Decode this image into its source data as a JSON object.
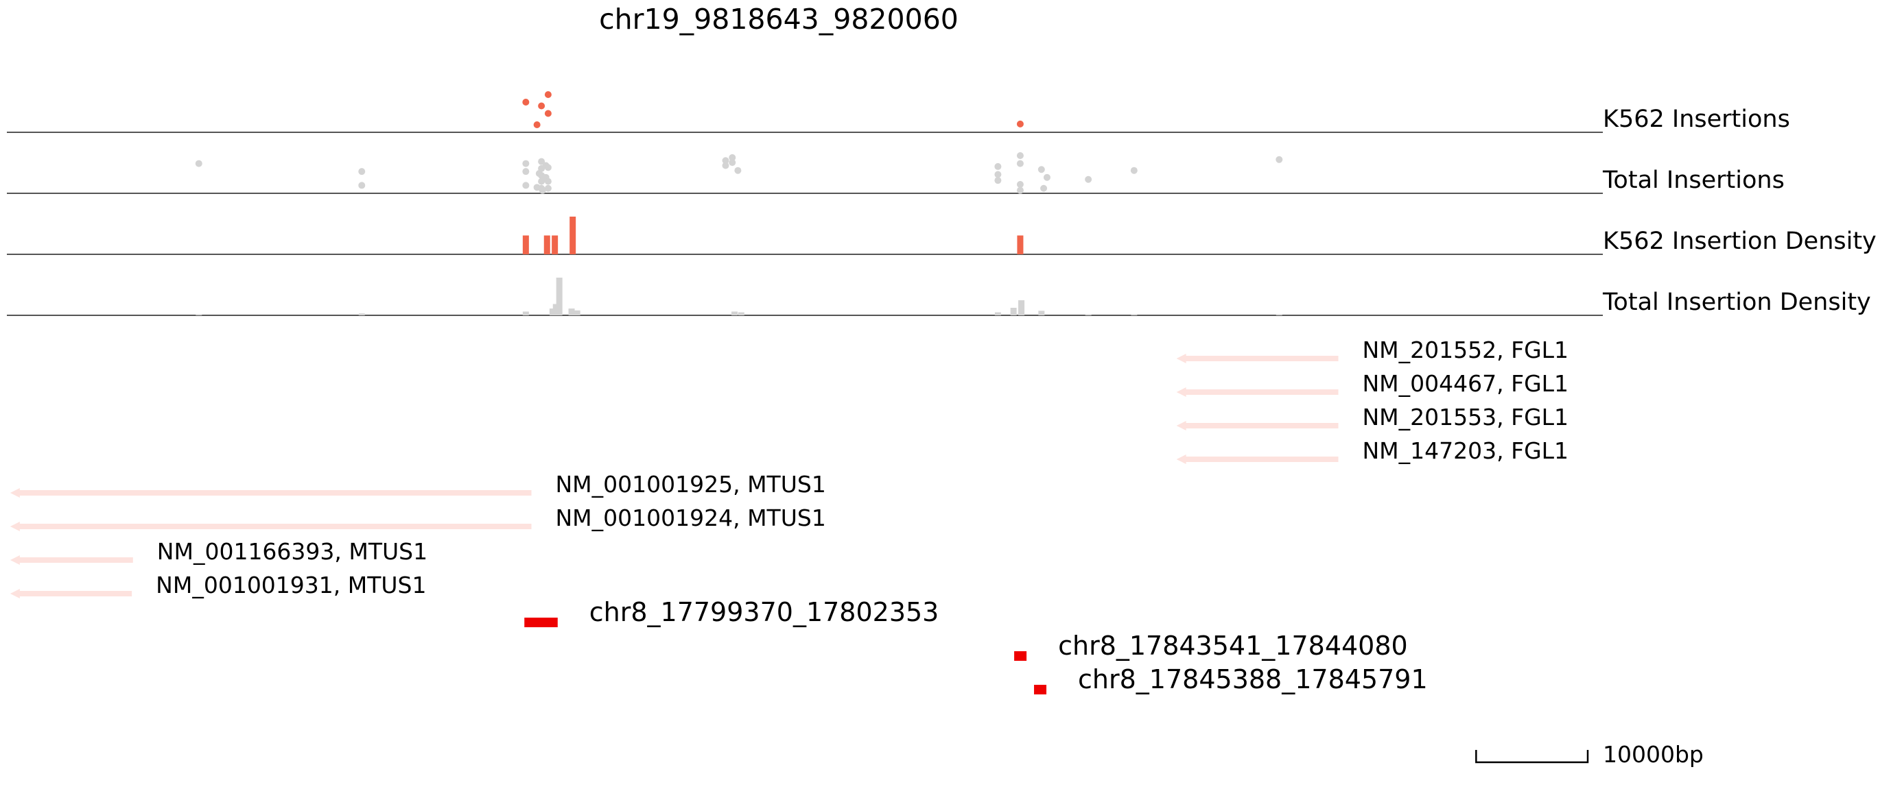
{
  "chart_data": {
    "type": "genome-track",
    "title": "chr19_9818643_9820060",
    "tracks": [
      {
        "label": "K562 Insertions",
        "kind": "scatter",
        "color": "#f0644a",
        "points": [
          {
            "x": 17799500,
            "y": 4
          },
          {
            "x": 17800500,
            "y": 1
          },
          {
            "x": 17800900,
            "y": 3.5
          },
          {
            "x": 17801500,
            "y": 5
          },
          {
            "x": 17801500,
            "y": 2.5
          },
          {
            "x": 17843800,
            "y": 1.1
          }
        ]
      },
      {
        "label": "Total Insertions",
        "kind": "scatter",
        "color": "#d3d3d3",
        "points": [
          {
            "x": 17770200,
            "y": 3
          },
          {
            "x": 17784800,
            "y": 2.2
          },
          {
            "x": 17784800,
            "y": 0.8
          },
          {
            "x": 17799500,
            "y": 3
          },
          {
            "x": 17799500,
            "y": 2.2
          },
          {
            "x": 17799500,
            "y": 0.8
          },
          {
            "x": 17800500,
            "y": 0.6
          },
          {
            "x": 17800900,
            "y": 3.2
          },
          {
            "x": 17800900,
            "y": 2.5
          },
          {
            "x": 17800900,
            "y": 1.8
          },
          {
            "x": 17800900,
            "y": 1.2
          },
          {
            "x": 17800900,
            "y": 0.5
          },
          {
            "x": 17800700,
            "y": 2.0
          },
          {
            "x": 17801100,
            "y": 1.5
          },
          {
            "x": 17801000,
            "y": 0.3
          },
          {
            "x": 17801300,
            "y": 2.8
          },
          {
            "x": 17801300,
            "y": 1.6
          },
          {
            "x": 17801500,
            "y": 2.6
          },
          {
            "x": 17801500,
            "y": 1.2
          },
          {
            "x": 17801500,
            "y": 0.5
          },
          {
            "x": 17817400,
            "y": 3.3
          },
          {
            "x": 17817400,
            "y": 2.8
          },
          {
            "x": 17818000,
            "y": 3.6
          },
          {
            "x": 17818000,
            "y": 3.1
          },
          {
            "x": 17818500,
            "y": 2.3
          },
          {
            "x": 17841800,
            "y": 2.7
          },
          {
            "x": 17841800,
            "y": 1.9
          },
          {
            "x": 17841800,
            "y": 1.3
          },
          {
            "x": 17843800,
            "y": 3.8
          },
          {
            "x": 17843800,
            "y": 3.0
          },
          {
            "x": 17843800,
            "y": 0.9
          },
          {
            "x": 17843800,
            "y": 0.3
          },
          {
            "x": 17845700,
            "y": 2.4
          },
          {
            "x": 17846200,
            "y": 1.6
          },
          {
            "x": 17845900,
            "y": 0.5
          },
          {
            "x": 17849900,
            "y": 1.4
          },
          {
            "x": 17854000,
            "y": 2.3
          },
          {
            "x": 17867000,
            "y": 3.4
          }
        ]
      },
      {
        "label": "K562 Insertion Density",
        "kind": "bar",
        "color": "#f0644a",
        "bars": [
          {
            "x": 17799500,
            "value": 0.5
          },
          {
            "x": 17801400,
            "value": 0.5
          },
          {
            "x": 17802100,
            "value": 0.5
          },
          {
            "x": 17803700,
            "value": 1.0
          },
          {
            "x": 17843800,
            "value": 0.5
          }
        ]
      },
      {
        "label": "Total Insertion Density",
        "kind": "bar",
        "color": "#d3d3d3",
        "bars": [
          {
            "x": 17770200,
            "value": 0.03
          },
          {
            "x": 17784800,
            "value": 0.05
          },
          {
            "x": 17799500,
            "value": 0.1
          },
          {
            "x": 17801900,
            "value": 0.18
          },
          {
            "x": 17802200,
            "value": 0.3
          },
          {
            "x": 17802500,
            "value": 1.0
          },
          {
            "x": 17803600,
            "value": 0.18
          },
          {
            "x": 17804100,
            "value": 0.13
          },
          {
            "x": 17818200,
            "value": 0.1
          },
          {
            "x": 17818800,
            "value": 0.08
          },
          {
            "x": 17841800,
            "value": 0.08
          },
          {
            "x": 17843200,
            "value": 0.2
          },
          {
            "x": 17843900,
            "value": 0.4
          },
          {
            "x": 17845700,
            "value": 0.12
          },
          {
            "x": 17849900,
            "value": 0.03
          },
          {
            "x": 17854000,
            "value": 0.03
          },
          {
            "x": 17867000,
            "value": 0.03
          }
        ]
      }
    ],
    "genes": [
      {
        "name": "NM_201552, FGL1",
        "start": 17857800,
        "end": 17872300,
        "strand": "-"
      },
      {
        "name": "NM_004467, FGL1",
        "start": 17857800,
        "end": 17872300,
        "strand": "-"
      },
      {
        "name": "NM_201553, FGL1",
        "start": 17857800,
        "end": 17872300,
        "strand": "-"
      },
      {
        "name": "NM_147203, FGL1",
        "start": 17857800,
        "end": 17872300,
        "strand": "-"
      },
      {
        "name": "NM_001001925, MTUS1",
        "start": 17753300,
        "end": 17800000,
        "strand": "-"
      },
      {
        "name": "NM_001001924, MTUS1",
        "start": 17753300,
        "end": 17800000,
        "strand": "-"
      },
      {
        "name": "NM_001166393, MTUS1",
        "start": 17753300,
        "end": 17764300,
        "strand": "-"
      },
      {
        "name": "NM_001001931, MTUS1",
        "start": 17753300,
        "end": 17764200,
        "strand": "-"
      }
    ],
    "peaks": [
      {
        "name": "chr8_17799370_17802353",
        "start": 17799370,
        "end": 17802353
      },
      {
        "name": "chr8_17843541_17844080",
        "start": 17843541,
        "end": 17844080
      },
      {
        "name": "chr8_17845388_17845791",
        "start": 17845388,
        "end": 17845791
      }
    ],
    "xlim": [
      17753000,
      17896000
    ],
    "scale_bar": {
      "length_bp": 10000,
      "label": "10000bp"
    },
    "colors": {
      "k562": "#f0644a",
      "total": "#d3d3d3",
      "gene": "#fde2de",
      "peak": "#ee0000",
      "baseline": "#555555"
    }
  }
}
